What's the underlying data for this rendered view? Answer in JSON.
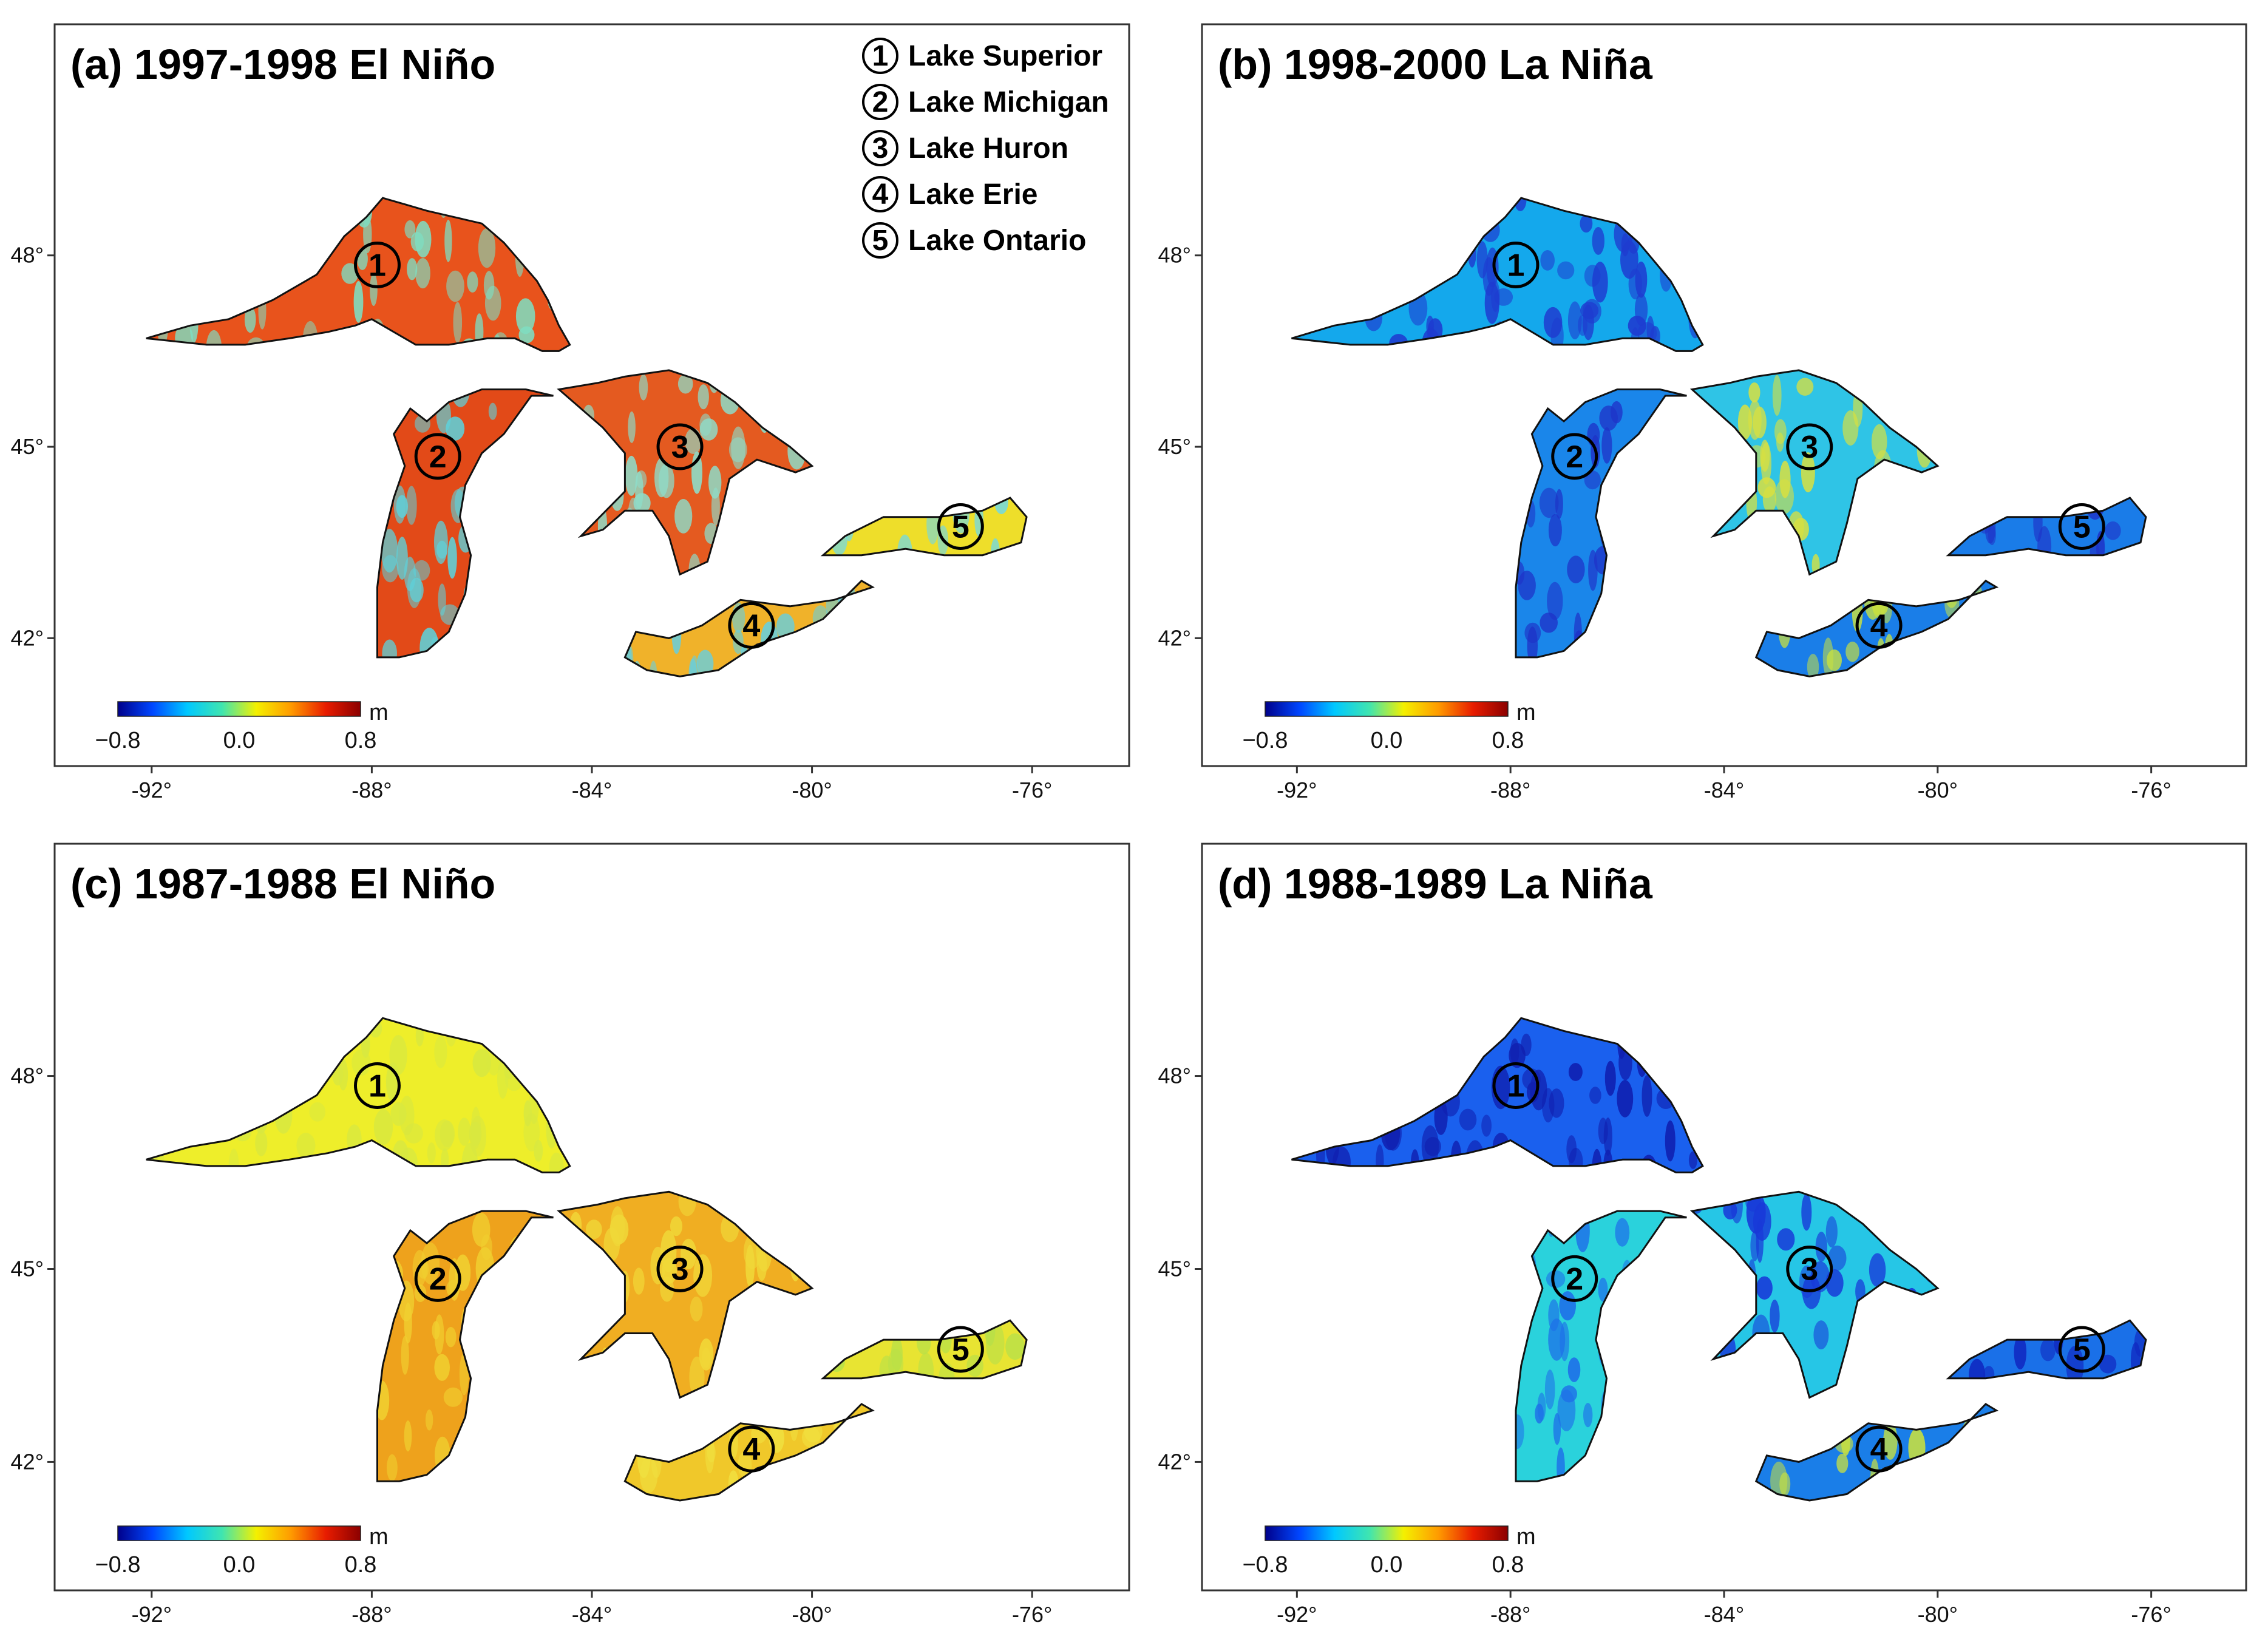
{
  "figure": {
    "colorbar": {
      "min_label": "−0.8",
      "mid_label": "0.0",
      "max_label": "0.8",
      "unit": "m",
      "colors": [
        "#00008b",
        "#0047ff",
        "#00c8ff",
        "#3fe5b0",
        "#f4f000",
        "#ff9a00",
        "#e81c00",
        "#8b0000"
      ]
    },
    "x_ticks": [
      "-92°",
      "-88°",
      "-84°",
      "-80°",
      "-76°"
    ],
    "y_ticks": [
      "42°",
      "45°",
      "48°"
    ],
    "legend": [
      {
        "num": "1",
        "name": "Lake Superior"
      },
      {
        "num": "2",
        "name": "Lake Michigan"
      },
      {
        "num": "3",
        "name": "Lake Huron"
      },
      {
        "num": "4",
        "name": "Lake Erie"
      },
      {
        "num": "5",
        "name": "Lake Ontario"
      }
    ],
    "lake_numbers": [
      "1",
      "2",
      "3",
      "4",
      "5"
    ]
  },
  "panels": [
    {
      "id": "a",
      "title": "(a) 1997-1998 El Niño",
      "show_legend": true,
      "lake_fill": {
        "superior": "#e8531c",
        "michigan": "#e24a18",
        "huron": "#e45a20",
        "erie": "#f0b22a",
        "ontario": "#eede2a"
      },
      "lake_texture": {
        "superior": "#7fdcc0",
        "michigan": "#5fd0d8",
        "huron": "#8edcc8",
        "erie": "#5fd0e8",
        "ontario": "#6fd8e8"
      }
    },
    {
      "id": "b",
      "title": "(b) 1998-2000 La Niña",
      "show_legend": false,
      "lake_fill": {
        "superior": "#14a8ec",
        "michigan": "#1a86ea",
        "huron": "#2fc4e6",
        "erie": "#1a7ee8",
        "ontario": "#1a7ce8"
      },
      "lake_texture": {
        "superior": "#1e3cd0",
        "michigan": "#1e34c8",
        "huron": "#d8e040",
        "erie": "#c8e040",
        "ontario": "#1e34c8"
      }
    },
    {
      "id": "c",
      "title": "(c) 1987-1988 El Niño",
      "show_legend": false,
      "lake_fill": {
        "superior": "#eeee2a",
        "michigan": "#eea21c",
        "huron": "#f0ae22",
        "erie": "#f0c82a",
        "ontario": "#e8e432"
      },
      "lake_texture": {
        "superior": "#d8e840",
        "michigan": "#f0d030",
        "huron": "#f0d838",
        "erie": "#f0e040",
        "ontario": "#b8e048"
      }
    },
    {
      "id": "d",
      "title": "(d) 1988-1989 La Niña",
      "show_legend": false,
      "lake_fill": {
        "superior": "#1a60ee",
        "michigan": "#2ad2dc",
        "huron": "#26c6e6",
        "erie": "#1a7ee8",
        "ontario": "#1a70e8"
      },
      "lake_texture": {
        "superior": "#1020b0",
        "michigan": "#1e70e8",
        "huron": "#1838d8",
        "erie": "#c8e040",
        "ontario": "#1028c0"
      }
    }
  ]
}
